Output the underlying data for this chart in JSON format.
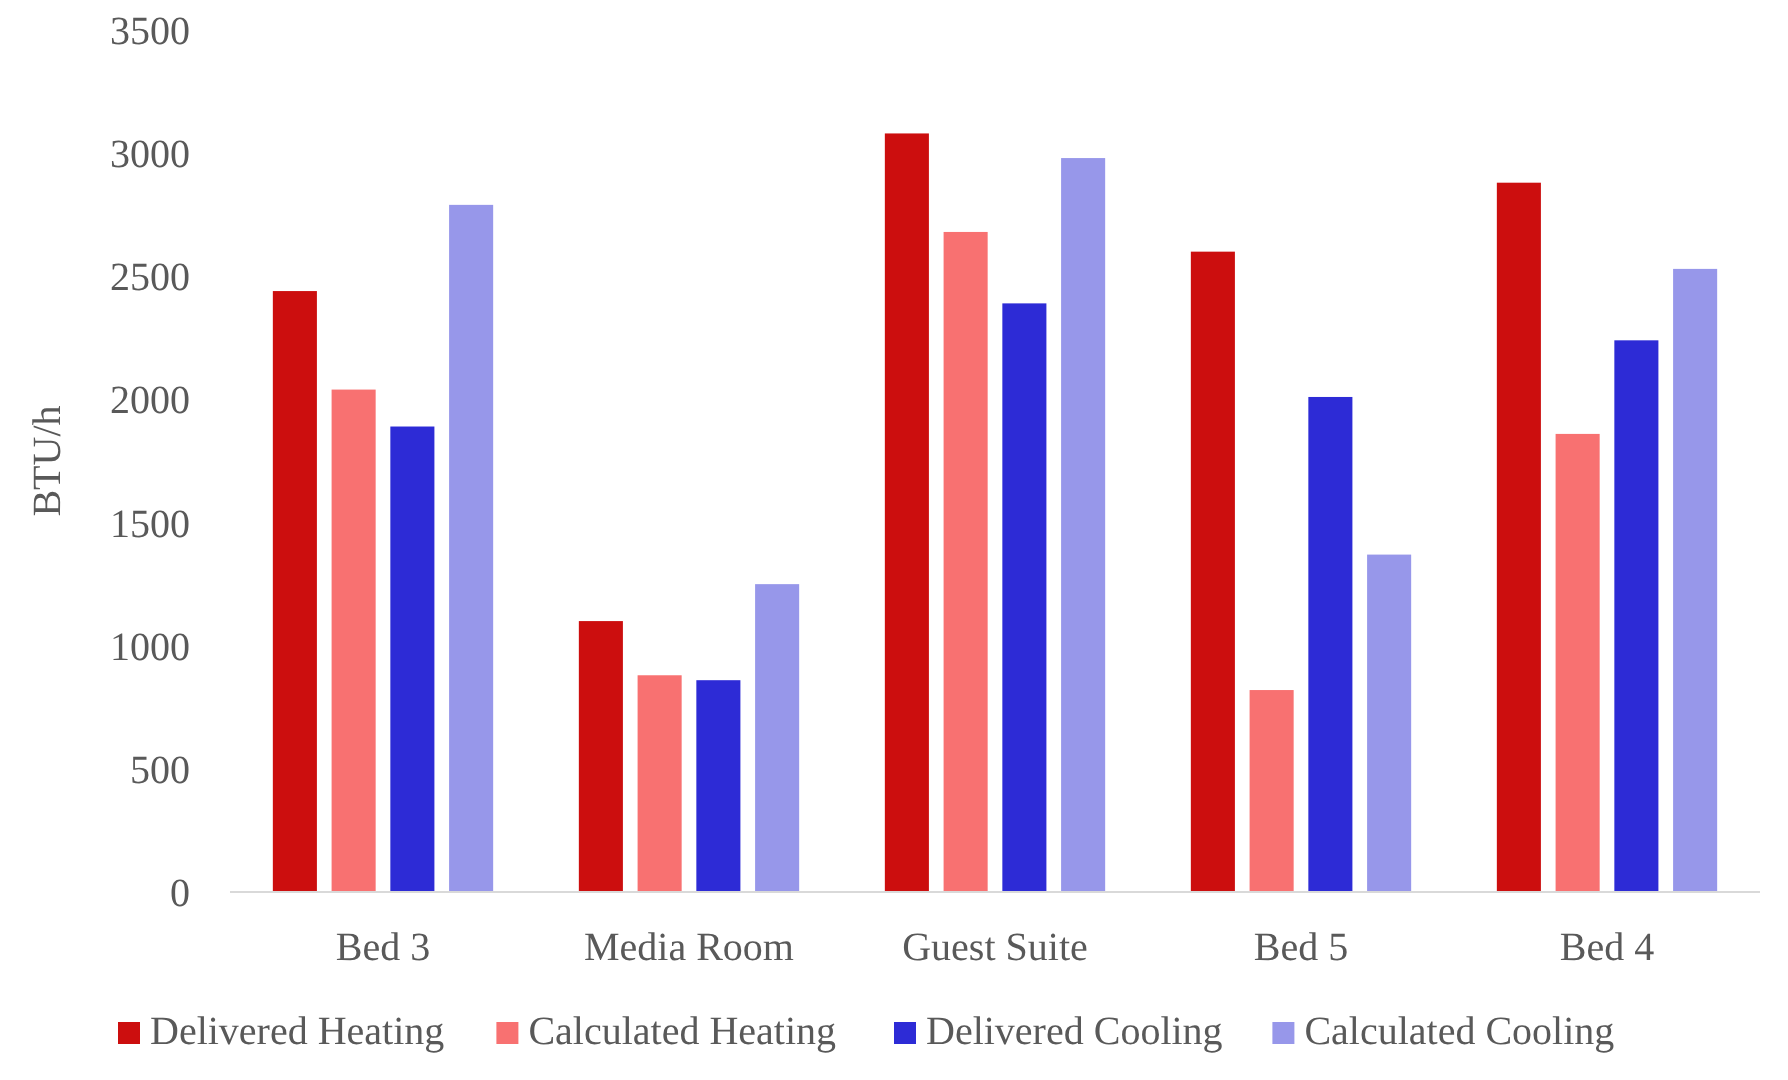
{
  "chart_data": {
    "type": "bar",
    "ylabel": "BTU/h",
    "categories": [
      "Bed 3",
      "Media Room",
      "Guest Suite",
      "Bed 5",
      "Bed 4"
    ],
    "series": [
      {
        "name": "Delivered Heating",
        "color": "#cc0e0e",
        "values": [
          2440,
          1100,
          3080,
          2600,
          2880
        ]
      },
      {
        "name": "Calculated Heating",
        "color": "#f87171",
        "values": [
          2040,
          880,
          2680,
          820,
          1860
        ]
      },
      {
        "name": "Delivered Cooling",
        "color": "#2d2bd6",
        "values": [
          1890,
          860,
          2390,
          2010,
          2240
        ]
      },
      {
        "name": "Calculated Cooling",
        "color": "#9797ea",
        "values": [
          2790,
          1250,
          2980,
          1370,
          2530
        ]
      }
    ],
    "ylim": [
      0,
      3500
    ],
    "yticks": [
      0,
      500,
      1000,
      1500,
      2000,
      2500,
      3000,
      3500
    ],
    "grid": false,
    "legend": "bottom"
  }
}
